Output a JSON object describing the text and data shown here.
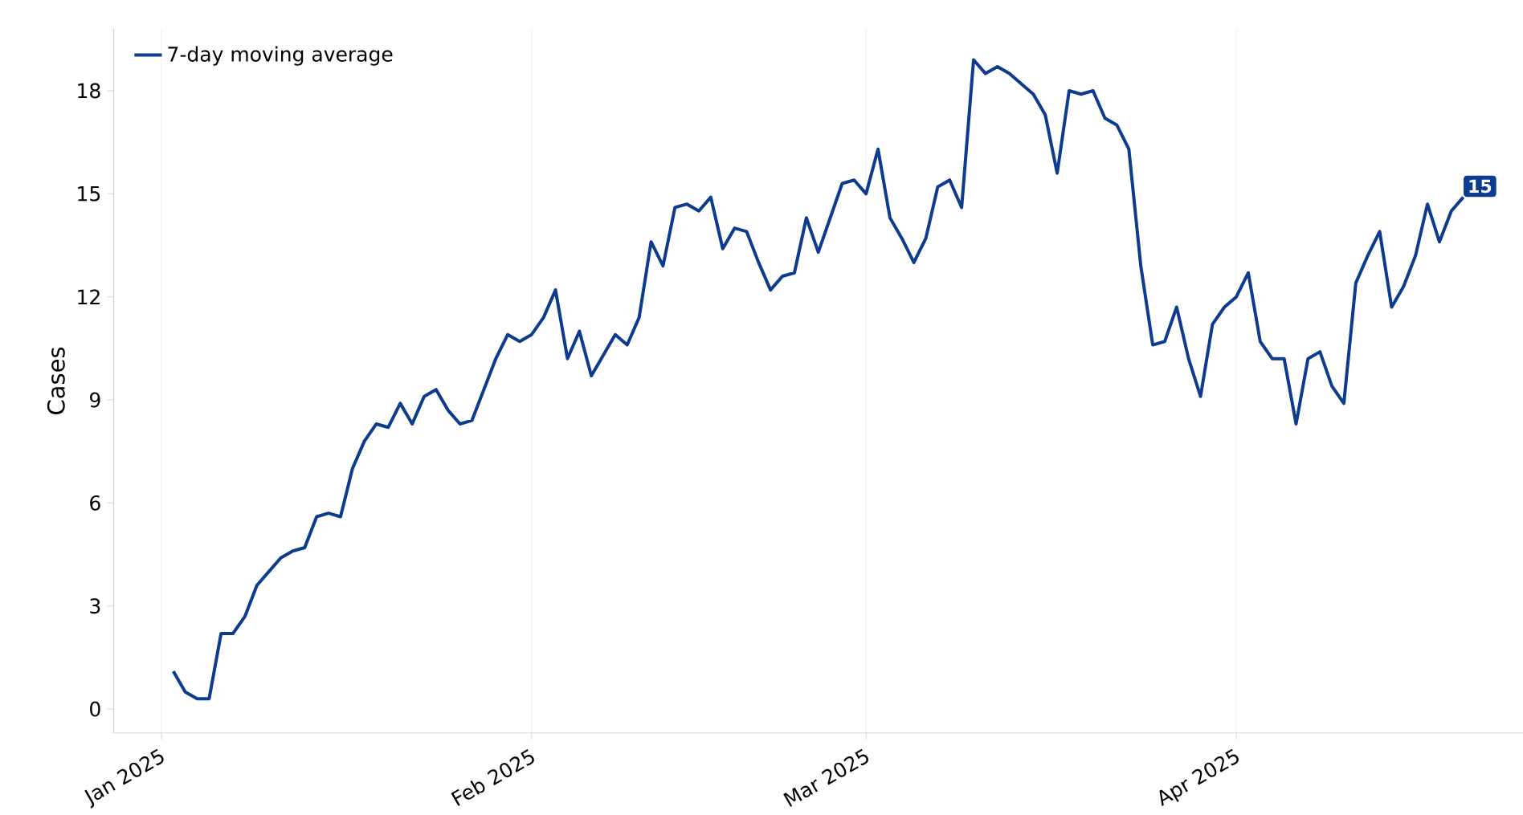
{
  "chart_data": {
    "type": "line",
    "ylabel": "Cases",
    "x": [
      "2025-01-02",
      "2025-01-03",
      "2025-01-04",
      "2025-01-05",
      "2025-01-06",
      "2025-01-07",
      "2025-01-08",
      "2025-01-09",
      "2025-01-10",
      "2025-01-11",
      "2025-01-12",
      "2025-01-13",
      "2025-01-14",
      "2025-01-15",
      "2025-01-16",
      "2025-01-17",
      "2025-01-18",
      "2025-01-19",
      "2025-01-20",
      "2025-01-21",
      "2025-01-22",
      "2025-01-23",
      "2025-01-24",
      "2025-01-25",
      "2025-01-26",
      "2025-01-27",
      "2025-01-28",
      "2025-01-29",
      "2025-01-30",
      "2025-01-31",
      "2025-02-01",
      "2025-02-02",
      "2025-02-03",
      "2025-02-04",
      "2025-02-05",
      "2025-02-06",
      "2025-02-07",
      "2025-02-08",
      "2025-02-09",
      "2025-02-10",
      "2025-02-11",
      "2025-02-12",
      "2025-02-13",
      "2025-02-14",
      "2025-02-15",
      "2025-02-16",
      "2025-02-17",
      "2025-02-18",
      "2025-02-19",
      "2025-02-20",
      "2025-02-21",
      "2025-02-22",
      "2025-02-23",
      "2025-02-24",
      "2025-02-25",
      "2025-02-26",
      "2025-02-27",
      "2025-02-28",
      "2025-03-01",
      "2025-03-02",
      "2025-03-03",
      "2025-03-04",
      "2025-03-05",
      "2025-03-06",
      "2025-03-07",
      "2025-03-08",
      "2025-03-09",
      "2025-03-10",
      "2025-03-11",
      "2025-03-12",
      "2025-03-13",
      "2025-03-14",
      "2025-03-15",
      "2025-03-16",
      "2025-03-17",
      "2025-03-18",
      "2025-03-19",
      "2025-03-20",
      "2025-03-21",
      "2025-03-22",
      "2025-03-23",
      "2025-03-24",
      "2025-03-25",
      "2025-03-26",
      "2025-03-27",
      "2025-03-28",
      "2025-03-29",
      "2025-03-30",
      "2025-03-31",
      "2025-04-01",
      "2025-04-02",
      "2025-04-03",
      "2025-04-04",
      "2025-04-05",
      "2025-04-06",
      "2025-04-07",
      "2025-04-08",
      "2025-04-09",
      "2025-04-10",
      "2025-04-11",
      "2025-04-12",
      "2025-04-13",
      "2025-04-14",
      "2025-04-15",
      "2025-04-16",
      "2025-04-17",
      "2025-04-18",
      "2025-04-19",
      "2025-04-20"
    ],
    "series": [
      {
        "name": "7-day moving average",
        "color": "#0d3b8e",
        "values": [
          1.1,
          0.5,
          0.3,
          0.3,
          2.2,
          2.2,
          2.7,
          3.6,
          4.0,
          4.4,
          4.6,
          4.7,
          5.6,
          5.7,
          5.6,
          7.0,
          7.8,
          8.3,
          8.2,
          8.9,
          8.3,
          9.1,
          9.3,
          8.7,
          8.3,
          8.4,
          9.3,
          10.2,
          10.9,
          10.7,
          10.9,
          11.4,
          12.2,
          10.2,
          11.0,
          9.7,
          10.3,
          10.9,
          10.6,
          11.4,
          13.6,
          12.9,
          14.6,
          14.7,
          14.5,
          14.9,
          13.4,
          14.0,
          13.9,
          13.0,
          12.2,
          12.6,
          12.7,
          14.3,
          13.3,
          14.3,
          15.3,
          15.4,
          15.0,
          16.3,
          14.3,
          13.7,
          13.0,
          13.7,
          15.2,
          15.4,
          14.6,
          18.9,
          18.5,
          18.7,
          18.5,
          18.2,
          17.9,
          17.3,
          15.6,
          18.0,
          17.9,
          18.0,
          17.2,
          17.0,
          16.3,
          12.9,
          10.6,
          10.7,
          11.7,
          10.2,
          9.1,
          11.2,
          11.7,
          12.0,
          12.7,
          10.7,
          10.2,
          10.2,
          8.3,
          10.2,
          10.4,
          9.4,
          8.9,
          12.4,
          13.2,
          13.9,
          11.7,
          12.3,
          13.2,
          14.7,
          13.6,
          14.5,
          14.9
        ]
      }
    ],
    "xlim": [
      "2024-12-28",
      "2025-04-25"
    ],
    "xticks": [
      {
        "value": "2025-01-01",
        "label": "Jan 2025"
      },
      {
        "value": "2025-02-01",
        "label": "Feb 2025"
      },
      {
        "value": "2025-03-01",
        "label": "Mar 2025"
      },
      {
        "value": "2025-04-01",
        "label": "Apr 2025"
      }
    ],
    "ylim": [
      -0.7,
      19.8
    ],
    "yticks": [
      0,
      3,
      6,
      9,
      12,
      15,
      18
    ],
    "annotations": [
      {
        "text": "15",
        "x": "2025-04-20",
        "y": 14.9
      }
    ],
    "grid": "x",
    "legend": "top left",
    "marker": "none",
    "line_style": "solid"
  }
}
